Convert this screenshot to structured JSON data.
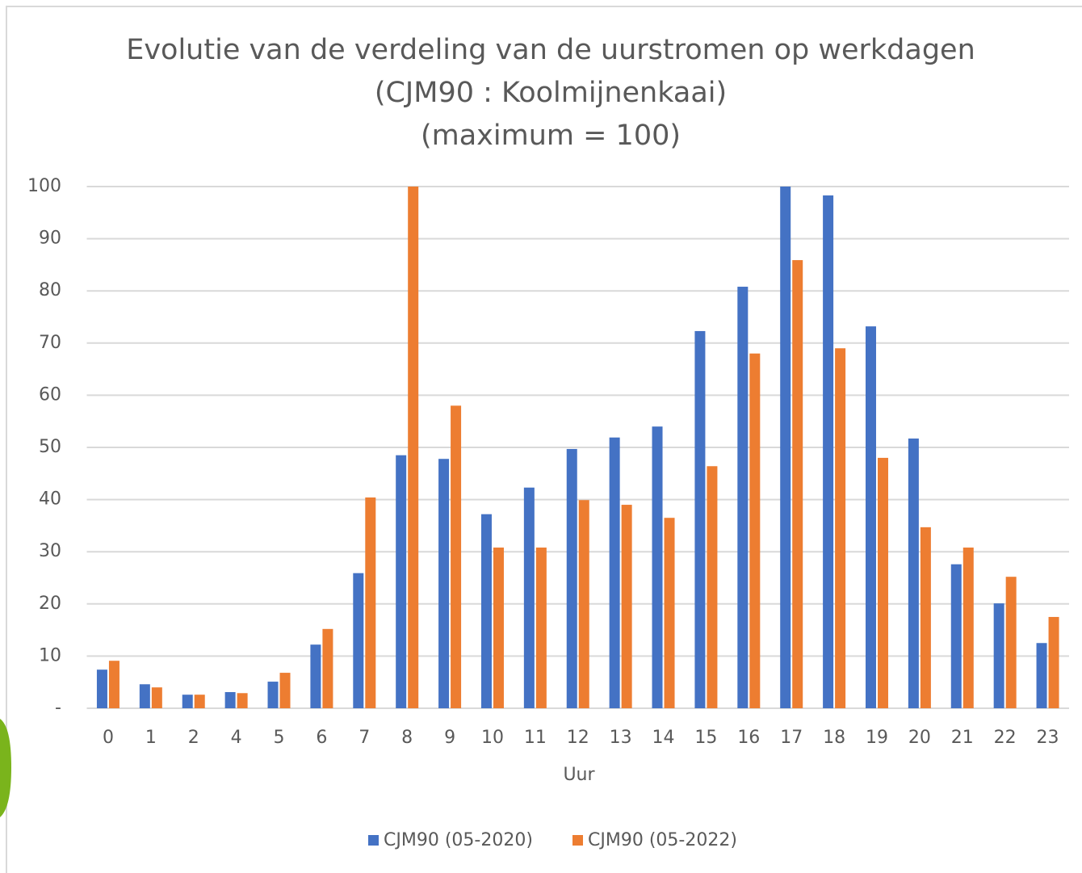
{
  "chart_data": {
    "type": "bar",
    "title": [
      "Evolutie  van de verdeling van de uurstromen op werkdagen",
      "(CJM90 : Koolmijnenkaai)",
      "(maximum = 100)"
    ],
    "x_label": "Uur",
    "categories": [
      "0",
      "1",
      "2",
      "4",
      "5",
      "6",
      "7",
      "8",
      "9",
      "10",
      "11",
      "12",
      "13",
      "14",
      "15",
      "16",
      "17",
      "18",
      "19",
      "20",
      "21",
      "22",
      "23"
    ],
    "series": [
      {
        "name": "CJM90 (05-2020)",
        "color": "#4472c4",
        "values": [
          7.4,
          4.6,
          2.6,
          3.1,
          5.1,
          12.2,
          25.9,
          48.5,
          47.8,
          37.2,
          42.3,
          49.7,
          51.9,
          54.0,
          72.3,
          80.8,
          100,
          98.3,
          73.2,
          51.7,
          27.6,
          20.1,
          12.5
        ]
      },
      {
        "name": "CJM90 (05-2022)",
        "color": "#ed7d31",
        "values": [
          9.1,
          4.0,
          2.6,
          2.9,
          6.8,
          15.2,
          40.4,
          100,
          58.0,
          30.8,
          30.8,
          39.9,
          39.0,
          36.5,
          46.4,
          68.0,
          85.9,
          69.0,
          48.0,
          34.7,
          30.8,
          25.2,
          17.5
        ]
      }
    ],
    "ylim": [
      0,
      100
    ],
    "yticks": [
      {
        "value": 0,
        "label": "-"
      },
      10,
      20,
      30,
      40,
      50,
      60,
      70,
      80,
      90,
      100
    ],
    "grid": true,
    "legend": "bottom"
  }
}
